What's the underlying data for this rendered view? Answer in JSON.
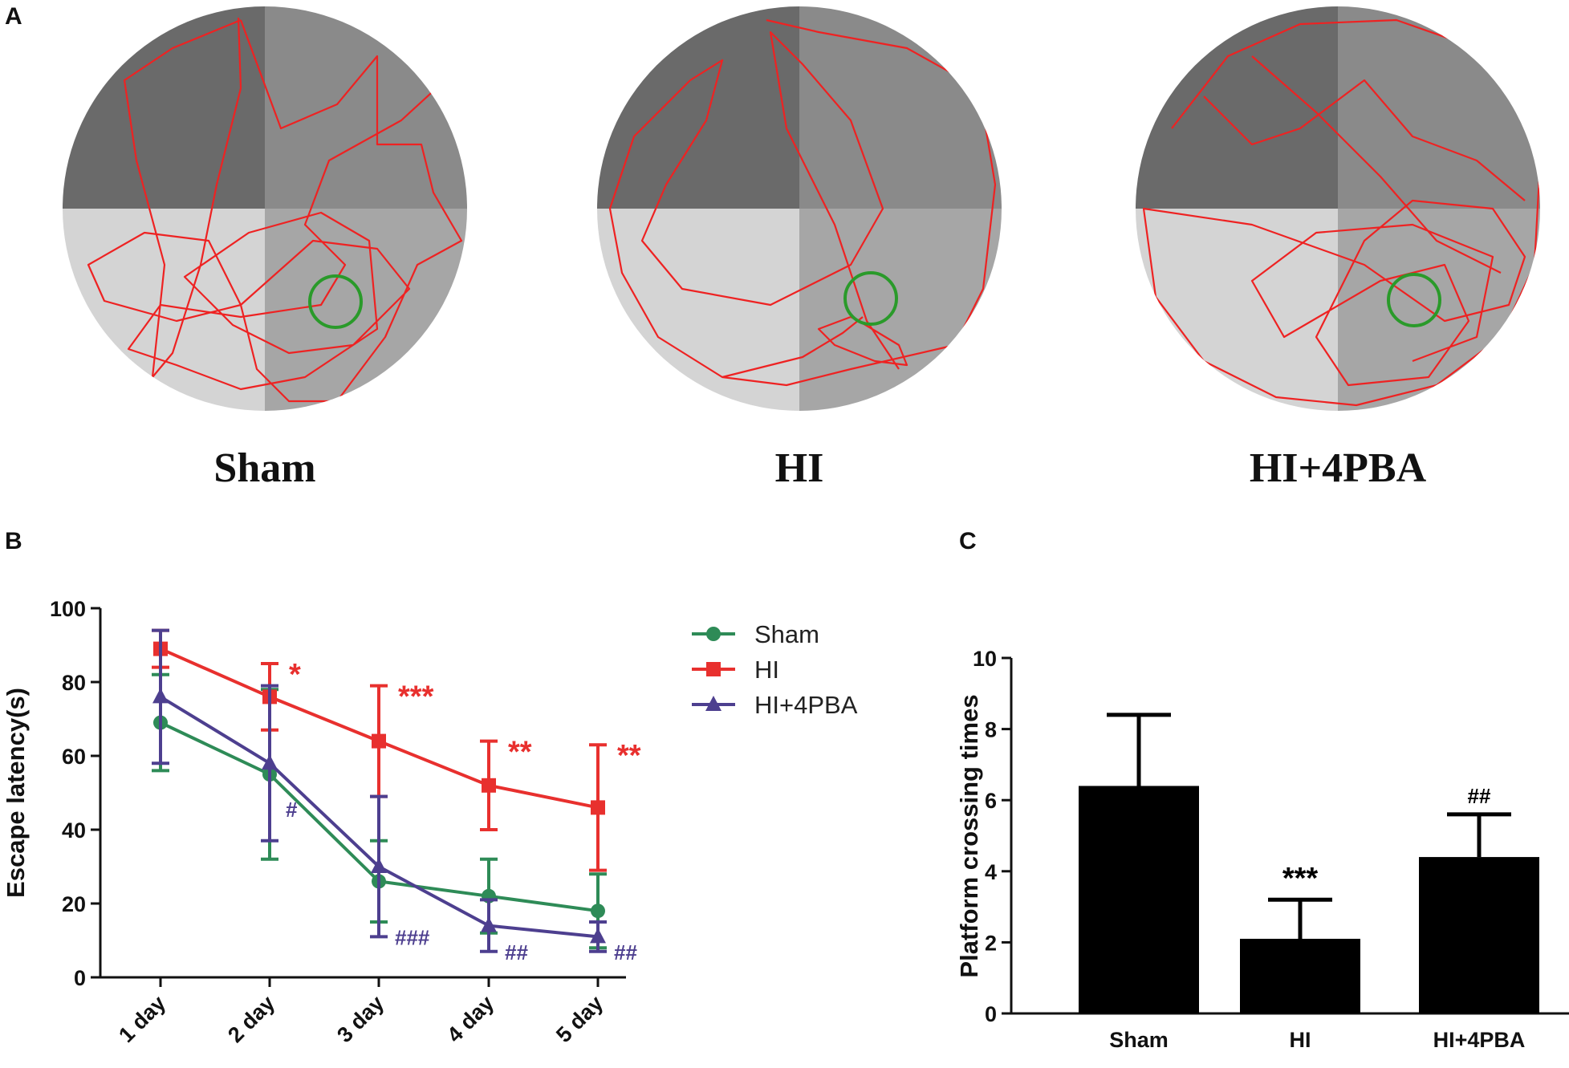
{
  "panel_a": {
    "label": "A",
    "mazes": [
      {
        "name": "Sham"
      },
      {
        "name": "HI"
      },
      {
        "name": "HI+4PBA"
      }
    ],
    "colors": {
      "path": "#ee2222",
      "platform": "#2a9a2a",
      "q_dark": "#6a6a6a",
      "q_mid": "#8a8a8a",
      "q_light": "#d4d4d4",
      "q_target": "#a6a6a6"
    }
  },
  "chart_data": [
    {
      "panel": "B",
      "type": "line",
      "ylabel": "Escape latency(s)",
      "xlabel": "",
      "categories": [
        "1 day",
        "2 day",
        "3 day",
        "4 day",
        "5 day"
      ],
      "ylim": [
        0,
        100
      ],
      "yticks": [
        0,
        20,
        40,
        60,
        80,
        100
      ],
      "legend_position": "right",
      "series": [
        {
          "name": "Sham",
          "color": "#2e8b57",
          "marker": "circle",
          "values": [
            69,
            55,
            26,
            22,
            18
          ],
          "errors": [
            13,
            23,
            11,
            10,
            10
          ],
          "annotations": [
            "",
            "",
            "",
            "",
            ""
          ]
        },
        {
          "name": "HI",
          "color": "#e8302e",
          "marker": "square",
          "values": [
            89,
            76,
            64,
            52,
            46
          ],
          "errors": [
            5,
            9,
            15,
            12,
            17
          ],
          "annotations": [
            "",
            "*",
            "***",
            "**",
            "**"
          ]
        },
        {
          "name": "HI+4PBA",
          "color": "#4d3f8f",
          "marker": "triangle",
          "values": [
            76,
            58,
            30,
            14,
            11
          ],
          "errors": [
            18,
            21,
            19,
            7,
            4
          ],
          "annotations": [
            "",
            "#",
            "###",
            "##",
            "##"
          ]
        }
      ]
    },
    {
      "panel": "C",
      "type": "bar",
      "ylabel": "Platform crossing times",
      "xlabel": "",
      "categories": [
        "Sham",
        "HI",
        "HI+4PBA"
      ],
      "values": [
        6.4,
        2.1,
        4.4
      ],
      "errors": [
        2.0,
        1.1,
        1.2
      ],
      "annotations": [
        "",
        "***",
        "##"
      ],
      "ylim": [
        0,
        10
      ],
      "yticks": [
        0,
        2,
        4,
        6,
        8,
        10
      ],
      "bar_color": "#000000"
    }
  ]
}
